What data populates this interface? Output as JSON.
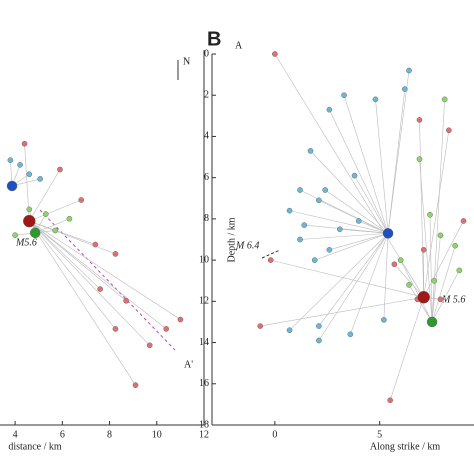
{
  "chart_data": [
    {
      "type": "scatter",
      "xlabel": "distance / km",
      "xlim": [
        3.36,
        12
      ],
      "xticks": [
        4,
        6,
        8,
        10,
        12
      ],
      "ylim": [
        0,
        16
      ],
      "annotations": [
        "N",
        "M5.6",
        "A'"
      ],
      "series": [
        {
          "color": "#6db6d6",
          "x": [
            3.8,
            4.21,
            4.6,
            5.06
          ],
          "values": [
            11.3,
            11.1,
            10.7,
            10.5
          ]
        },
        {
          "color": "#8fd46a",
          "x": [
            4.6,
            5.3,
            5.7,
            4.0,
            6.3
          ],
          "values": [
            9.2,
            9.0,
            8.3,
            8.1,
            8.8
          ]
        },
        {
          "color": "#e07070",
          "x": [
            4.4,
            5.9,
            6.8,
            7.4,
            8.25,
            7.6,
            8.7,
            10.4,
            9.7,
            8.25,
            11.0,
            9.1
          ],
          "values": [
            12.0,
            10.9,
            9.6,
            7.7,
            7.3,
            5.8,
            5.3,
            4.1,
            3.4,
            4.1,
            4.5,
            1.7
          ]
        },
        {
          "color": "#1f4fc4",
          "x": [
            3.87
          ],
          "values": [
            10.2
          ],
          "size": 5
        },
        {
          "color": "#2e9a2e",
          "x": [
            4.85
          ],
          "values": [
            8.2
          ],
          "size": 5
        },
        {
          "color": "#a01818",
          "x": [
            4.6
          ],
          "values": [
            8.7
          ],
          "size": 6
        }
      ]
    },
    {
      "type": "scatter",
      "title": "B",
      "xlabel": "Along strike / km",
      "ylabel": "Depth / km",
      "xlim": [
        -3,
        9.5
      ],
      "xticks": [
        0,
        5
      ],
      "ylim": [
        0,
        18
      ],
      "yticks": [
        0,
        2,
        4,
        6,
        8,
        10,
        12,
        14,
        16,
        18
      ],
      "y_inverted": true,
      "annotations": [
        "A",
        "M 6.4",
        "M 5.6"
      ],
      "series": [
        {
          "color": "#6db6d6",
          "x": [
            2.6,
            1.7,
            1.2,
            0.7,
            2.1,
            3.1,
            3.8,
            1.2,
            1.9,
            2.6,
            4.0,
            4.8,
            6.4,
            0.7,
            2.1,
            3.6,
            2.1,
            5.2,
            6.2,
            3.3,
            1.4,
            2.4
          ],
          "values": [
            2.7,
            4.7,
            6.6,
            7.6,
            7.1,
            8.5,
            5.9,
            9.0,
            10.0,
            9.5,
            8.1,
            2.2,
            0.8,
            13.4,
            13.9,
            13.6,
            13.2,
            12.9,
            1.7,
            2.0,
            8.3,
            6.6
          ]
        },
        {
          "color": "#8fd46a",
          "x": [
            6.9,
            7.4,
            7.9,
            8.6,
            6.0,
            6.4,
            8.1,
            8.8,
            7.6
          ],
          "values": [
            5.1,
            7.8,
            8.8,
            9.3,
            10.0,
            11.2,
            2.2,
            10.5,
            11.0
          ]
        },
        {
          "color": "#e07070",
          "x": [
            6.9,
            8.3,
            9.0,
            7.1,
            7.9,
            -0.2,
            -0.7,
            5.7,
            0,
            6.8,
            5.5
          ],
          "values": [
            3.2,
            3.7,
            8.1,
            9.5,
            11.9,
            10.0,
            13.2,
            10.2,
            0,
            11.9,
            16.8
          ]
        },
        {
          "color": "#1f4fc4",
          "x": [
            5.4
          ],
          "values": [
            8.7
          ],
          "size": 5
        },
        {
          "color": "#2e9a2e",
          "x": [
            7.5
          ],
          "values": [
            13.0
          ],
          "size": 5
        },
        {
          "color": "#a01818",
          "x": [
            7.1
          ],
          "values": [
            11.8
          ],
          "size": 6
        }
      ]
    }
  ]
}
